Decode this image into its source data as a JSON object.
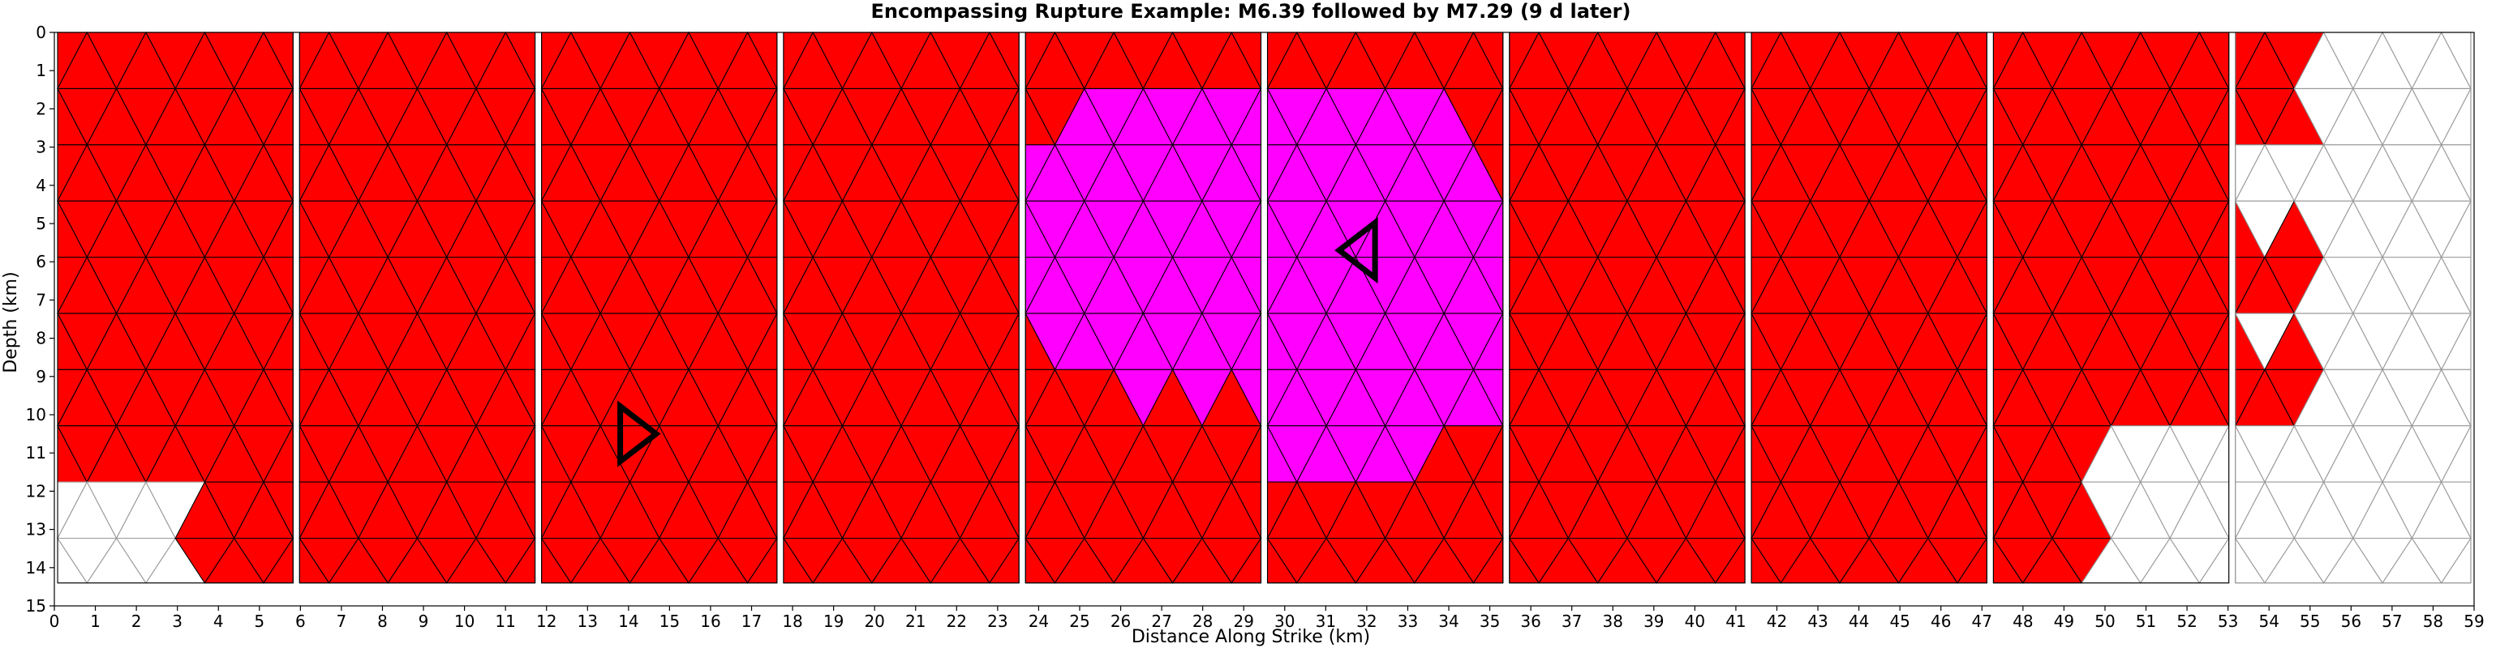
{
  "chart_data": {
    "type": "heatmap",
    "title": "Encompassing Rupture Example: M6.39 followed by M7.29 (9 d later)",
    "xlabel": "Distance Along Strike (km)",
    "ylabel": "Depth (km)",
    "xlim": [
      0,
      59
    ],
    "ylim": [
      15,
      0
    ],
    "xticks": [
      0,
      1,
      2,
      3,
      4,
      5,
      6,
      7,
      8,
      9,
      10,
      11,
      12,
      13,
      14,
      15,
      16,
      17,
      18,
      19,
      20,
      21,
      22,
      23,
      24,
      25,
      26,
      27,
      28,
      29,
      30,
      31,
      32,
      33,
      34,
      35,
      36,
      37,
      38,
      39,
      40,
      41,
      42,
      43,
      44,
      45,
      46,
      47,
      48,
      49,
      50,
      51,
      52,
      53,
      54,
      55,
      56,
      57,
      58,
      59
    ],
    "yticks": [
      0,
      1,
      2,
      3,
      4,
      5,
      6,
      7,
      8,
      9,
      10,
      11,
      12,
      13,
      14,
      15
    ],
    "fault_depth_km": 14.4,
    "triangle_size_km": 1.47,
    "colors": {
      "first_rupture": "#ff00ff",
      "second_rupture": "#ff0000",
      "unruptured": "#ffffff",
      "mesh_edge_ruptured": "#000000",
      "mesh_edge_unruptured": "#999999",
      "hypocenter_marker": "#000000"
    },
    "segments": [
      {
        "x_start": 0.0,
        "x_end": 5.9,
        "ruptured": "second",
        "unruptured_zones": [
          {
            "x": [
              0.0,
              3.0
            ],
            "depth": [
              11.8,
              14.4
            ]
          }
        ]
      },
      {
        "x_start": 5.9,
        "x_end": 11.8,
        "ruptured": "second"
      },
      {
        "x_start": 11.8,
        "x_end": 17.7,
        "ruptured": "second"
      },
      {
        "x_start": 17.7,
        "x_end": 23.6,
        "ruptured": "second"
      },
      {
        "x_start": 23.6,
        "x_end": 29.5,
        "ruptured": "second",
        "first_rupture_zone": {
          "x": [
            23.6,
            29.5
          ],
          "depth": [
            1.5,
            9.7
          ]
        }
      },
      {
        "x_start": 29.5,
        "x_end": 35.4,
        "ruptured": "second",
        "first_rupture_zone": {
          "x": [
            29.5,
            35.4
          ],
          "depth": [
            1.4,
            11.9
          ]
        }
      },
      {
        "x_start": 35.4,
        "x_end": 41.3,
        "ruptured": "second"
      },
      {
        "x_start": 41.3,
        "x_end": 47.2,
        "ruptured": "second"
      },
      {
        "x_start": 47.2,
        "x_end": 53.1,
        "ruptured": "second",
        "unruptured_zones": [
          {
            "x": [
              49.6,
              53.1
            ],
            "depth": [
              10.5,
              14.4
            ]
          }
        ]
      },
      {
        "x_start": 53.1,
        "x_end": 59.0,
        "ruptured": "none",
        "red_zones": [
          {
            "x": [
              53.1,
              54.7
            ],
            "depth": [
              0.0,
              2.9
            ]
          },
          {
            "x": [
              53.1,
              54.7
            ],
            "depth": [
              5.0,
              7.2
            ]
          },
          {
            "x": [
              53.1,
              54.7
            ],
            "depth": [
              8.0,
              10.5
            ]
          }
        ]
      }
    ],
    "hypocenters": [
      {
        "event": "M6.39",
        "x": 31.9,
        "depth": 5.7,
        "direction": "left"
      },
      {
        "event": "M7.29",
        "x": 14.1,
        "depth": 10.5,
        "direction": "right"
      }
    ],
    "legend": "none",
    "grid": false
  }
}
